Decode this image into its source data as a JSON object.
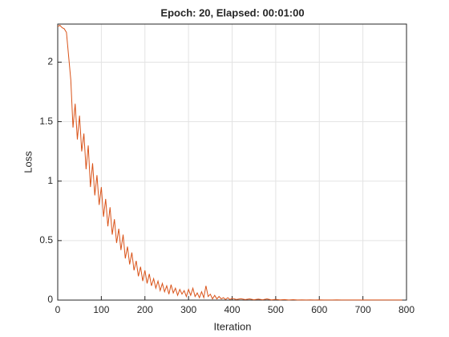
{
  "chart_data": {
    "type": "line",
    "title": "Epoch: 20, Elapsed: 00:01:00",
    "x_label": "Iteration",
    "y_label": "Loss",
    "x": [
      0,
      5,
      10,
      15,
      20,
      25,
      30,
      35,
      40,
      45,
      50,
      55,
      60,
      65,
      70,
      75,
      80,
      85,
      90,
      95,
      100,
      105,
      110,
      115,
      120,
      125,
      130,
      135,
      140,
      145,
      150,
      155,
      160,
      165,
      170,
      175,
      180,
      185,
      190,
      195,
      200,
      205,
      210,
      215,
      220,
      225,
      230,
      235,
      240,
      245,
      250,
      255,
      260,
      265,
      270,
      275,
      280,
      285,
      290,
      295,
      300,
      305,
      310,
      315,
      320,
      325,
      330,
      335,
      340,
      345,
      350,
      355,
      360,
      365,
      370,
      375,
      380,
      385,
      390,
      395,
      400,
      410,
      420,
      430,
      440,
      450,
      460,
      470,
      480,
      490,
      500,
      510,
      520,
      530,
      540,
      550,
      560,
      570,
      580,
      590,
      600,
      610,
      620,
      630,
      640,
      650,
      660,
      670,
      680,
      690,
      700,
      710,
      720,
      730,
      740,
      750,
      760,
      770,
      780,
      790
    ],
    "series": [
      {
        "name": "Loss",
        "color": "#d95319",
        "values": [
          2.3,
          2.31,
          2.29,
          2.28,
          2.25,
          2.05,
          1.85,
          1.45,
          1.65,
          1.35,
          1.55,
          1.25,
          1.4,
          1.1,
          1.3,
          0.95,
          1.15,
          0.88,
          1.05,
          0.8,
          0.95,
          0.7,
          0.85,
          0.62,
          0.78,
          0.55,
          0.68,
          0.48,
          0.6,
          0.42,
          0.55,
          0.35,
          0.45,
          0.3,
          0.4,
          0.25,
          0.33,
          0.2,
          0.28,
          0.16,
          0.25,
          0.14,
          0.22,
          0.12,
          0.18,
          0.1,
          0.16,
          0.08,
          0.14,
          0.07,
          0.12,
          0.05,
          0.13,
          0.06,
          0.1,
          0.04,
          0.09,
          0.05,
          0.08,
          0.03,
          0.09,
          0.04,
          0.1,
          0.03,
          0.06,
          0.02,
          0.07,
          0.02,
          0.12,
          0.03,
          0.05,
          0.01,
          0.04,
          0.01,
          0.03,
          0.01,
          0.02,
          0.005,
          0.02,
          0.005,
          0.015,
          0.005,
          0.012,
          0.004,
          0.01,
          0.003,
          0.008,
          0.003,
          0.01,
          0.002,
          0.006,
          0.002,
          0.004,
          0.001,
          0.003,
          0.001,
          0.002,
          0.001,
          0.002,
          0.001,
          0.002,
          0.001,
          0.001,
          0.001,
          0.002,
          0.001,
          0.001,
          0.001,
          0.001,
          0.001,
          0.001,
          0.001,
          0.001,
          0.001,
          0.001,
          0.001,
          0.001,
          0.001,
          0.001,
          0.001
        ]
      }
    ],
    "xlim": [
      0,
      800
    ],
    "ylim": [
      0,
      2.32
    ],
    "xticks": [
      0,
      100,
      200,
      300,
      400,
      500,
      600,
      700,
      800
    ],
    "yticks": [
      0,
      0.5,
      1,
      1.5,
      2
    ],
    "grid": true
  }
}
